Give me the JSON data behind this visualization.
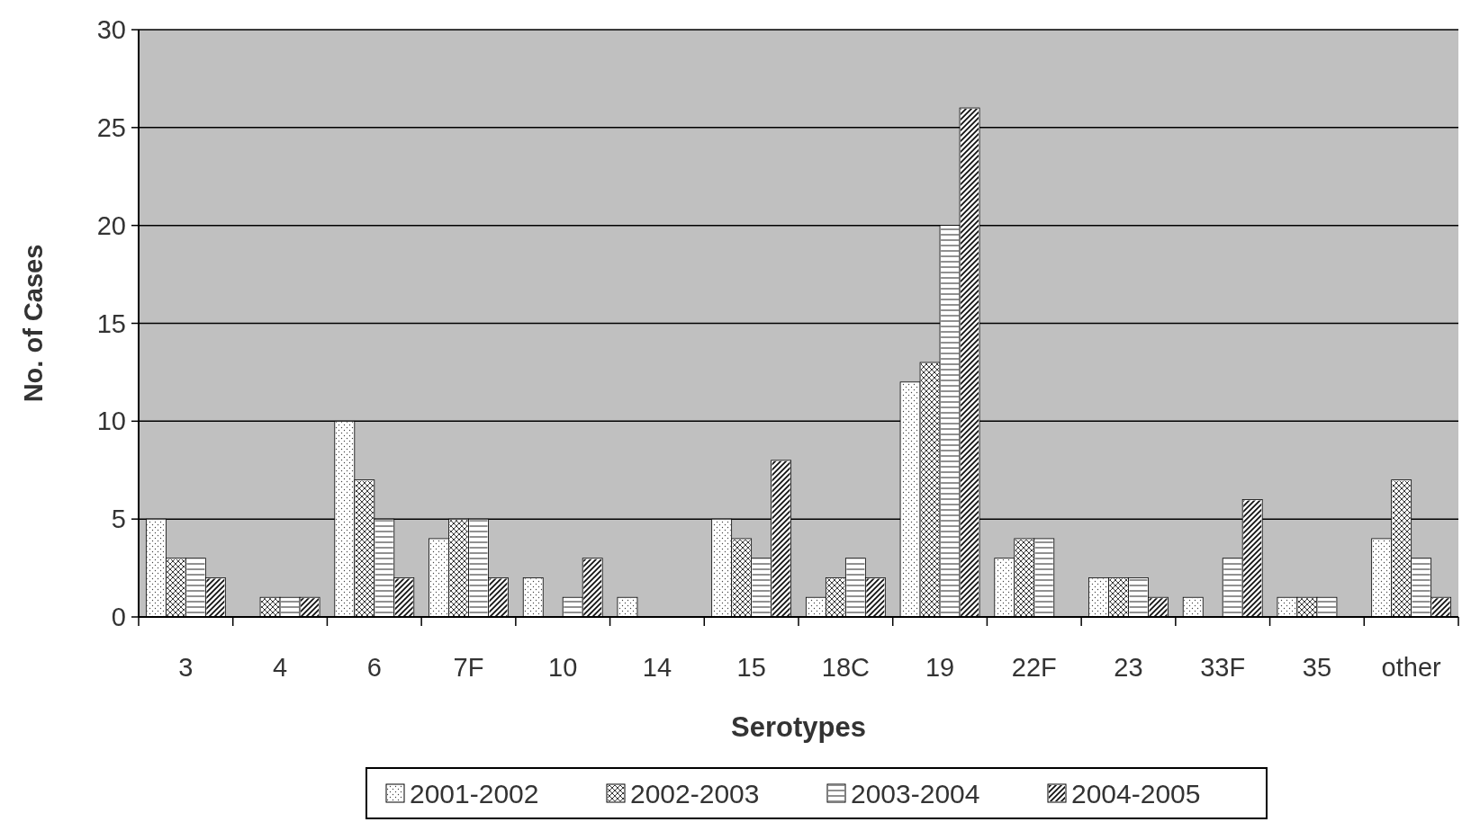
{
  "chart_data": {
    "type": "bar",
    "xlabel": "Serotypes",
    "ylabel": "No. of Cases",
    "categories": [
      "3",
      "4",
      "6",
      "7F",
      "10",
      "14",
      "15",
      "18C",
      "19",
      "22F",
      "23",
      "33F",
      "35",
      "other"
    ],
    "series": [
      {
        "name": "2001-2002",
        "color": "#ffffff",
        "values": [
          5,
          0,
          10,
          4,
          2,
          1,
          5,
          1,
          12,
          3,
          2,
          1,
          1,
          4
        ]
      },
      {
        "name": "2002-2003",
        "color": "#ffffff",
        "values": [
          3,
          1,
          7,
          5,
          0,
          0,
          4,
          2,
          13,
          4,
          2,
          0,
          1,
          7
        ]
      },
      {
        "name": "2003-2004",
        "color": "#ffffff",
        "values": [
          3,
          1,
          5,
          5,
          1,
          0,
          3,
          3,
          20,
          4,
          2,
          3,
          1,
          3
        ]
      },
      {
        "name": "2004-2005",
        "color": "#ffffff",
        "values": [
          2,
          1,
          2,
          2,
          3,
          0,
          8,
          2,
          26,
          0,
          1,
          6,
          0,
          1
        ]
      }
    ],
    "ylim": [
      0,
      30
    ],
    "yticks": [
      0,
      5,
      10,
      15,
      20,
      25,
      30
    ],
    "grid": "y",
    "legend": "bottom"
  }
}
